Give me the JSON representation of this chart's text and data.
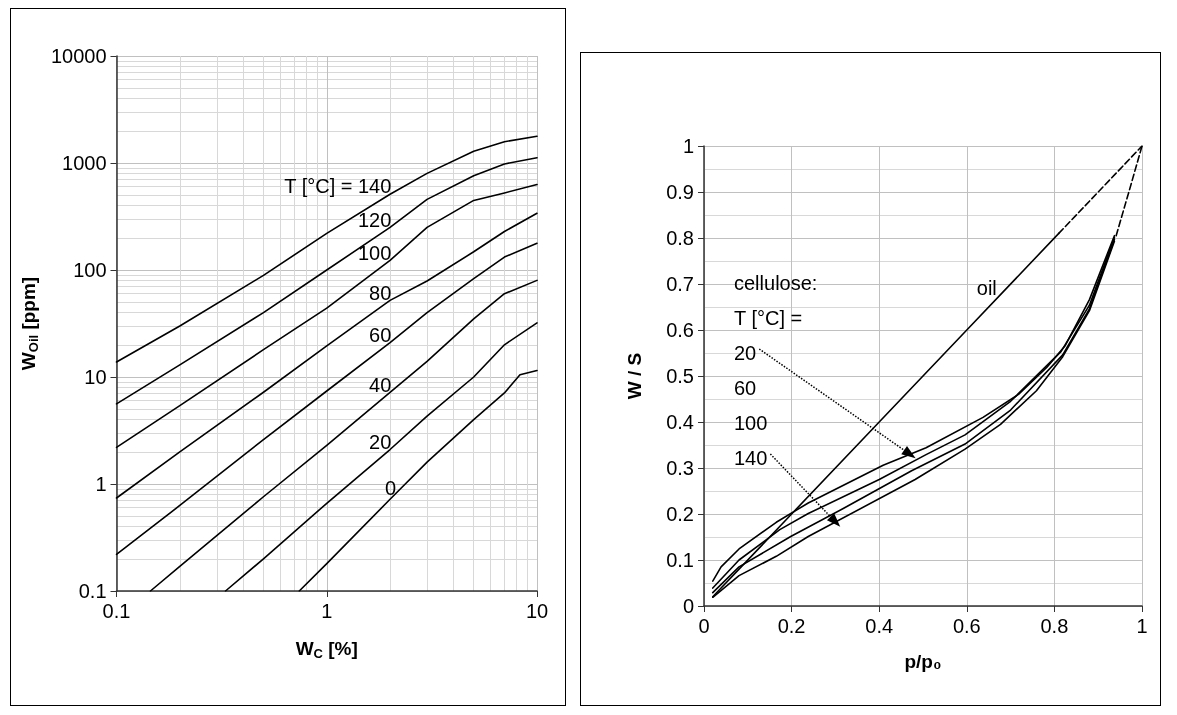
{
  "chart_data": [
    {
      "type": "line",
      "xlabel": "W$_{C}$ [%]",
      "ylabel": "W$_{Oil}$ [ppm]",
      "log": "xy",
      "xlim": [
        0.1,
        10
      ],
      "ylim": [
        0.1,
        10000
      ],
      "xticks": [
        0.1,
        1,
        10
      ],
      "yticks": [
        0.1,
        1,
        10,
        100,
        1000,
        10000
      ],
      "grid": true,
      "legend": false,
      "marker": "none",
      "annotations": [
        {
          "text": "T [°C] = 140",
          "x": 1.9,
          "y": 480
        },
        {
          "text": "120",
          "x": 1.9,
          "y": 233
        },
        {
          "text": "100",
          "x": 1.9,
          "y": 114
        },
        {
          "text": "80",
          "x": 1.9,
          "y": 48
        },
        {
          "text": "60",
          "x": 1.9,
          "y": 19.4
        },
        {
          "text": "40",
          "x": 1.9,
          "y": 6.6
        },
        {
          "text": "20",
          "x": 1.9,
          "y": 1.93
        },
        {
          "text": "0",
          "x": 2.0,
          "y": 0.72
        }
      ],
      "series": [
        {
          "color": "#000000",
          "x": [
            0.1,
            0.2,
            0.5,
            1,
            2,
            3,
            5,
            7,
            10
          ],
          "values": [
            13.8,
            30,
            89,
            220,
            510,
            800,
            1290,
            1580,
            1780
          ]
        },
        {
          "color": "#000000",
          "x": [
            0.1,
            0.2,
            0.5,
            1,
            2,
            3,
            5,
            7,
            10
          ],
          "values": [
            5.6,
            13,
            40,
            100,
            250,
            457,
            760,
            980,
            1120
          ]
        },
        {
          "color": "#000000",
          "x": [
            0.1,
            0.2,
            0.5,
            1,
            2,
            3,
            5,
            7,
            10
          ],
          "values": [
            2.2,
            5.4,
            18,
            44,
            123,
            250,
            447,
            525,
            630
          ]
        },
        {
          "color": "#000000",
          "x": [
            0.1,
            0.2,
            0.5,
            1,
            2,
            3,
            5,
            7,
            10
          ],
          "values": [
            0.74,
            2.0,
            7.2,
            19.5,
            52,
            79,
            148,
            229,
            339
          ]
        },
        {
          "color": "#000000",
          "x": [
            0.1,
            0.2,
            0.5,
            1,
            2,
            3,
            5,
            7,
            10
          ],
          "values": [
            0.22,
            0.63,
            2.6,
            7.4,
            21,
            40,
            83,
            132,
            178
          ]
        },
        {
          "color": "#000000",
          "x": [
            0.145,
            0.2,
            0.5,
            1,
            2,
            3,
            5,
            7,
            10
          ],
          "values": [
            0.1,
            0.17,
            0.76,
            2.3,
            7.2,
            14,
            35,
            60,
            80
          ]
        },
        {
          "color": "#000000",
          "x": [
            0.33,
            0.5,
            1,
            2,
            3,
            5,
            7,
            10
          ],
          "values": [
            0.1,
            0.2,
            0.66,
            2.1,
            4.3,
            10,
            20,
            32
          ]
        },
        {
          "color": "#000000",
          "x": [
            0.74,
            1,
            2,
            3,
            5,
            7,
            8.3,
            10
          ],
          "values": [
            0.1,
            0.18,
            0.72,
            1.6,
            4,
            7.1,
            10.5,
            11.5
          ]
        }
      ]
    },
    {
      "type": "line",
      "xlabel": "p/p₀",
      "ylabel": "W / S",
      "xlim": [
        0,
        1
      ],
      "ylim": [
        0,
        1
      ],
      "xticks": [
        0,
        0.2,
        0.4,
        0.6,
        0.8,
        1
      ],
      "yticks": [
        0,
        0.1,
        0.2,
        0.3,
        0.4,
        0.5,
        0.6,
        0.7,
        0.8,
        0.9,
        1
      ],
      "grid": true,
      "legend": false,
      "marker": "none",
      "annotations": [
        "cellulose:",
        "T [°C] =",
        {
          "text": "20",
          "x": 0.47,
          "y": 0.33
        },
        "60",
        "100",
        {
          "text": "140",
          "x": 0.3,
          "y": 0.183
        }
      ],
      "series": [
        {
          "name": "oil",
          "color": "#000000",
          "x": [
            0.02,
            0.2,
            0.4,
            0.6,
            0.81
          ],
          "values": [
            0.02,
            0.2,
            0.4,
            0.6,
            0.81
          ]
        },
        {
          "color": "#000000",
          "line_style": "dashed",
          "x": [
            0.81,
            1
          ],
          "values": [
            0.81,
            1
          ]
        },
        {
          "color": "#000000",
          "x": [
            0.02,
            0.039,
            0.08,
            0.165,
            0.238,
            0.409,
            0.507,
            0.637,
            0.718,
            0.783,
            0.824,
            0.88,
            0.937
          ],
          "values": [
            0.054,
            0.085,
            0.124,
            0.182,
            0.224,
            0.306,
            0.344,
            0.41,
            0.46,
            0.519,
            0.565,
            0.666,
            0.805
          ]
        },
        {
          "color": "#000000",
          "x": [
            0.02,
            0.08,
            0.173,
            0.238,
            0.4,
            0.507,
            0.596,
            0.7,
            0.815,
            0.88,
            0.937
          ],
          "values": [
            0.039,
            0.1,
            0.166,
            0.201,
            0.275,
            0.329,
            0.372,
            0.445,
            0.553,
            0.654,
            0.801
          ]
        },
        {
          "color": "#000000",
          "x": [
            0.02,
            0.08,
            0.198,
            0.32,
            0.474,
            0.596,
            0.7,
            0.819,
            0.88,
            0.937
          ],
          "values": [
            0.029,
            0.085,
            0.151,
            0.213,
            0.294,
            0.352,
            0.426,
            0.546,
            0.646,
            0.797
          ]
        },
        {
          "color": "#000000",
          "x": [
            0.02,
            0.08,
            0.165,
            0.238,
            0.482,
            0.596,
            0.677,
            0.759,
            0.819,
            0.88,
            0.937
          ],
          "values": [
            0.019,
            0.066,
            0.108,
            0.151,
            0.275,
            0.341,
            0.395,
            0.468,
            0.542,
            0.642,
            0.793
          ]
        },
        {
          "color": "#000000",
          "line_style": "dashed",
          "x": [
            0.941,
            0.97,
            1
          ],
          "values": [
            0.805,
            0.9,
            1
          ]
        }
      ]
    }
  ]
}
